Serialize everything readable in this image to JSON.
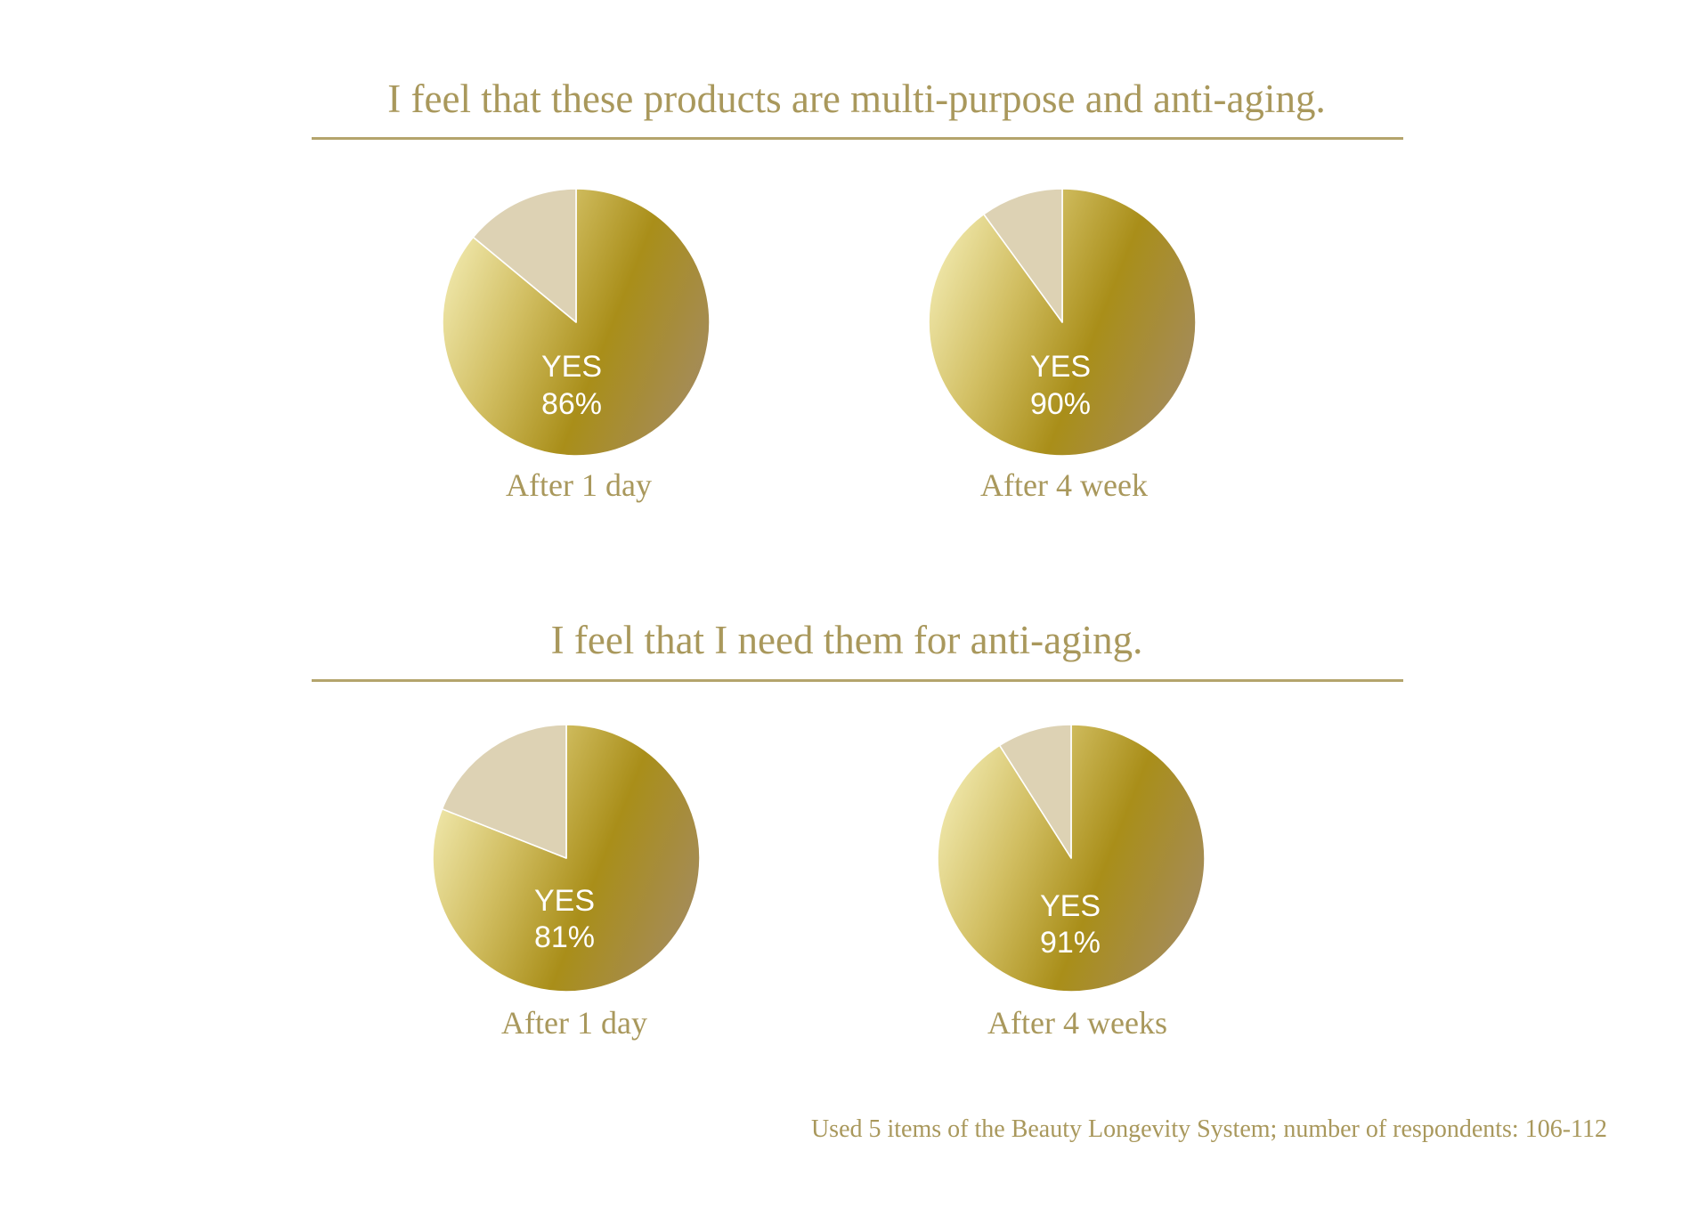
{
  "colors": {
    "background": "#ffffff",
    "text": "#a9985c",
    "rule": "#b4a46c",
    "yes_gradient": [
      "#f0e8ac",
      "#d2bf63",
      "#a98e19",
      "#a48b5c"
    ],
    "remainder": "#ddd2b4",
    "slice_divider": "#ffffff",
    "slice_label": "#ffffff"
  },
  "chart_data": [
    {
      "type": "pie",
      "title": "I feel that these products are multi-purpose and anti-aging.",
      "pies": [
        {
          "caption": "After 1 day",
          "slices": [
            {
              "label": "YES",
              "value": 86,
              "value_label": "86%"
            },
            {
              "value": 14
            }
          ]
        },
        {
          "caption": "After 4 week",
          "slices": [
            {
              "label": "YES",
              "value": 90,
              "value_label": "90%"
            },
            {
              "value": 10
            }
          ]
        }
      ]
    },
    {
      "type": "pie",
      "title": "I feel that I need them for anti-aging.",
      "pies": [
        {
          "caption": "After 1 day",
          "slices": [
            {
              "label": "YES",
              "value": 81,
              "value_label": "81%"
            },
            {
              "value": 19
            }
          ]
        },
        {
          "caption": "After 4 weeks",
          "slices": [
            {
              "label": "YES",
              "value": 91,
              "value_label": "91%"
            },
            {
              "value": 9
            }
          ]
        }
      ]
    }
  ],
  "footnote": "Used 5 items of the Beauty Longevity System; number of respondents: 106-112"
}
